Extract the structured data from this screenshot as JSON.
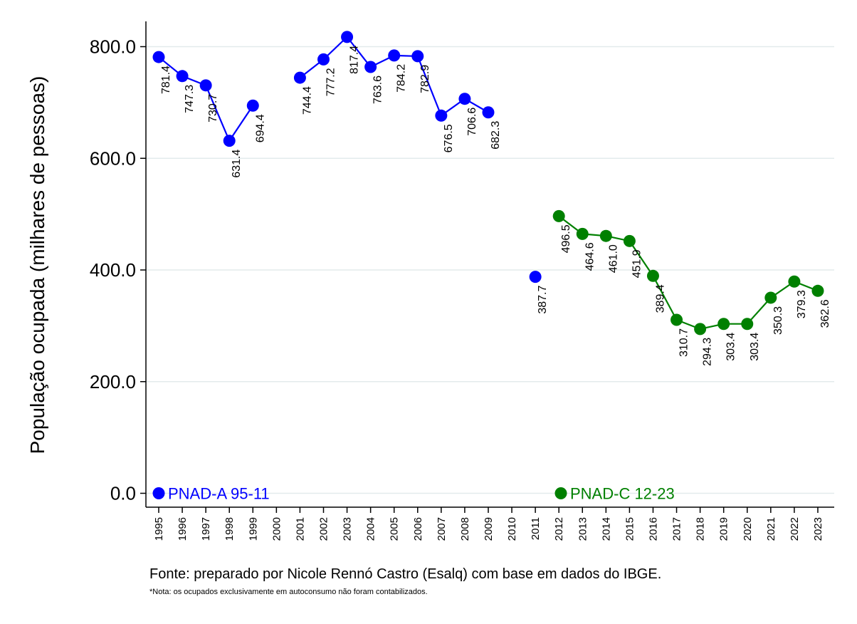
{
  "chart_data": {
    "type": "line",
    "title": "",
    "ylabel": "População ocupada (milhares de pessoas)",
    "xlabel": "",
    "ylim": [
      0,
      850
    ],
    "yticks": [
      "0.0",
      "200.0",
      "400.0",
      "600.0",
      "800.0"
    ],
    "ytick_values": [
      0,
      200,
      400,
      600,
      800
    ],
    "categories": [
      "1995",
      "1996",
      "1997",
      "1998",
      "1999",
      "2000",
      "2001",
      "2002",
      "2003",
      "2004",
      "2005",
      "2006",
      "2007",
      "2008",
      "2009",
      "2010",
      "2011",
      "2012",
      "2013",
      "2014",
      "2015",
      "2016",
      "2017",
      "2018",
      "2019",
      "2020",
      "2021",
      "2022",
      "2023"
    ],
    "grid": true,
    "legend_position": "bottom-inside",
    "series": [
      {
        "name": "PNAD-A 95-11",
        "color": "#0000ff",
        "values": [
          781.4,
          747.3,
          730.7,
          631.4,
          694.4,
          null,
          744.4,
          777.2,
          817.4,
          763.6,
          784.2,
          782.9,
          676.5,
          706.6,
          682.3,
          null,
          387.7,
          null,
          null,
          null,
          null,
          null,
          null,
          null,
          null,
          null,
          null,
          null,
          null
        ],
        "labels": [
          "781.4",
          "747.3",
          "730.7",
          "631.4",
          "694.4",
          "",
          "744.4",
          "777.2",
          "817.4",
          "763.6",
          "784.2",
          "782.9",
          "676.5",
          "706.6",
          "682.3",
          "",
          "387.7",
          "",
          "",
          "",
          "",
          "",
          "",
          "",
          "",
          "",
          "",
          "",
          ""
        ]
      },
      {
        "name": "PNAD-C 12-23",
        "color": "#008000",
        "values": [
          null,
          null,
          null,
          null,
          null,
          null,
          null,
          null,
          null,
          null,
          null,
          null,
          null,
          null,
          null,
          null,
          null,
          496.5,
          464.6,
          461.0,
          451.9,
          389.4,
          310.7,
          294.3,
          303.4,
          303.4,
          350.3,
          379.3,
          362.6
        ],
        "labels": [
          "",
          "",
          "",
          "",
          "",
          "",
          "",
          "",
          "",
          "",
          "",
          "",
          "",
          "",
          "",
          "",
          "",
          "496.5",
          "464.6",
          "461.0",
          "451.9",
          "389.4",
          "310.7",
          "294.3",
          "303.4",
          "303.4",
          "350.3",
          "379.3",
          "362.6"
        ]
      }
    ]
  },
  "notes": {
    "source": "Fonte: preparado por Nicole Rennó Castro (Esalq) com base em dados do IBGE.",
    "footnote": "*Nota: os ocupados exclusivamente em autoconsumo não foram contabilizados."
  }
}
